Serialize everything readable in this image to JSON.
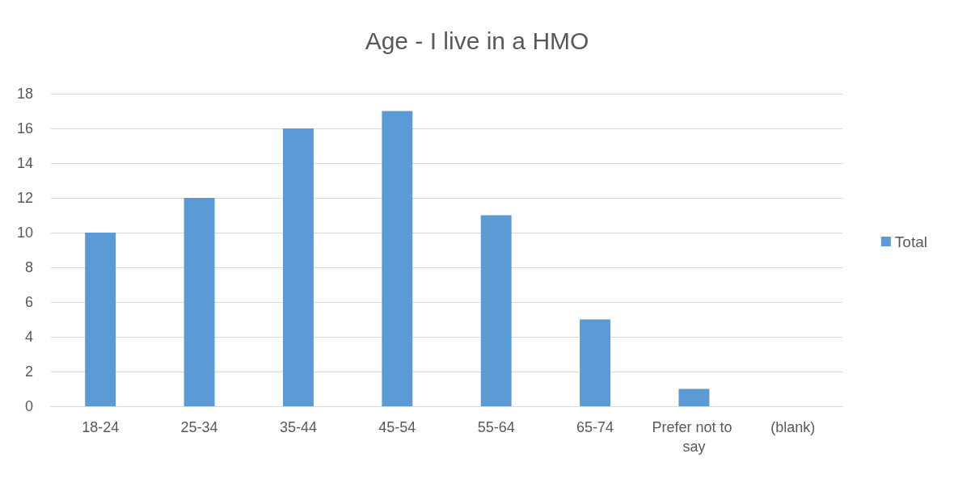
{
  "chart_data": {
    "type": "bar",
    "title": "Age - I live in a HMO",
    "categories": [
      "18-24",
      "25-34",
      "35-44",
      "45-54",
      "55-64",
      "65-74",
      "Prefer not to say",
      "(blank)"
    ],
    "series": [
      {
        "name": "Total",
        "color": "#5b9bd5",
        "values": [
          10,
          12,
          16,
          17,
          11,
          5,
          1,
          0
        ]
      }
    ],
    "ylim": [
      0,
      18
    ],
    "yticks": [
      0,
      2,
      4,
      6,
      8,
      10,
      12,
      14,
      16,
      18
    ],
    "grid": "y",
    "legend": "right"
  }
}
